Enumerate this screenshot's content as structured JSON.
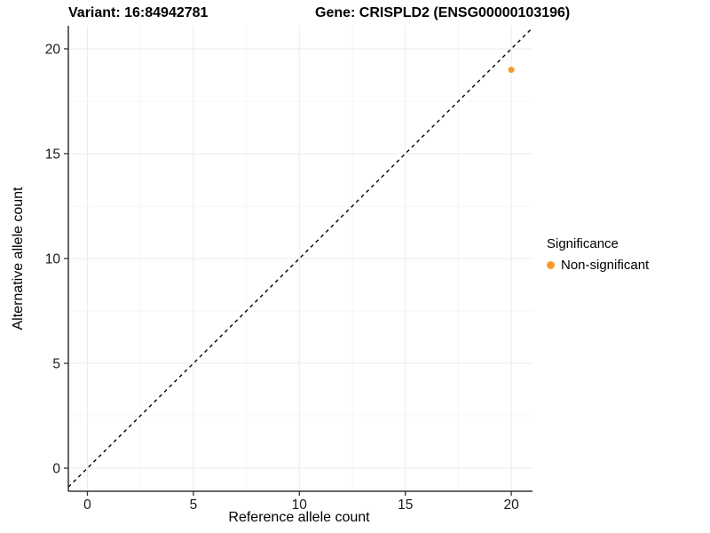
{
  "title": {
    "left": "Variant: 16:84942781",
    "right": "Gene: CRISPLD2 (ENSG00000103196)"
  },
  "axes": {
    "x_label": "Reference allele count",
    "y_label": "Alternative allele count"
  },
  "legend": {
    "title": "Significance",
    "entries": [
      {
        "label": "Non-significant",
        "color": "#F9992C",
        "marker": "circle-icon"
      }
    ]
  },
  "chart_data": {
    "type": "scatter",
    "title": "Variant: 16:84942781    Gene: CRISPLD2 (ENSG00000103196)",
    "xlabel": "Reference allele count",
    "ylabel": "Alternative allele count",
    "xlim": [
      -0.9,
      21.0
    ],
    "ylim": [
      -1.1,
      21.1
    ],
    "x_ticks": [
      0,
      5,
      10,
      15,
      20
    ],
    "y_ticks": [
      0,
      5,
      10,
      15,
      20
    ],
    "x_minor_ticks": [
      2.5,
      7.5,
      12.5,
      17.5
    ],
    "y_minor_ticks": [
      2.5,
      7.5,
      12.5,
      17.5
    ],
    "grid": "on",
    "legend_position": "right",
    "reference_line": {
      "kind": "identity y=x",
      "style": "dashed",
      "color": "#000000"
    },
    "series": [
      {
        "name": "Non-significant",
        "color": "#F9992C",
        "points": [
          {
            "x": 20,
            "y": 19
          }
        ]
      }
    ]
  },
  "colors": {
    "background": "#FFFFFF",
    "grid_major": "#EBEBEB",
    "grid_minor": "#F5F5F5",
    "axis_line": "#333333",
    "tick_text": "#1A1A1A",
    "text": "#000000",
    "point": "#F9992C"
  }
}
